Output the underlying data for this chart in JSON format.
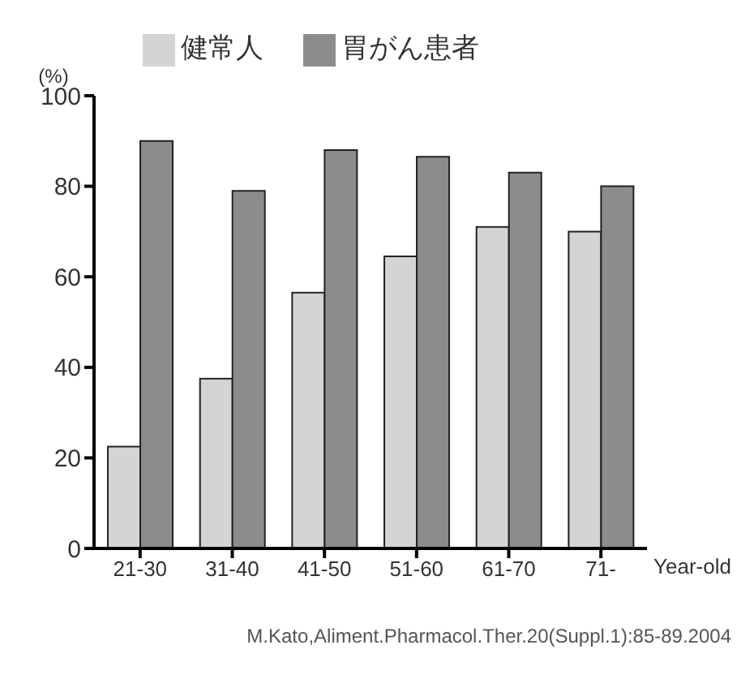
{
  "chart_data": {
    "type": "bar",
    "categories": [
      "21-30",
      "31-40",
      "41-50",
      "51-60",
      "61-70",
      "71-"
    ],
    "series": [
      {
        "name": "健常人",
        "color": "#d4d4d4",
        "values": [
          22.5,
          37.5,
          56.5,
          64.5,
          71,
          70
        ]
      },
      {
        "name": "胃がん患者",
        "color": "#8c8c8c",
        "values": [
          90,
          79,
          88,
          86.5,
          83,
          80
        ]
      }
    ],
    "ylabel": "(%)",
    "xlabel": "Year-old",
    "ylim": [
      0,
      100
    ],
    "yticks": [
      0,
      20,
      40,
      60,
      80,
      100
    ],
    "grid": false,
    "legend": "top",
    "annotations": [
      "M.Kato,Aliment.Pharmacol.Ther.20(Suppl.1):85-89.2004"
    ]
  }
}
